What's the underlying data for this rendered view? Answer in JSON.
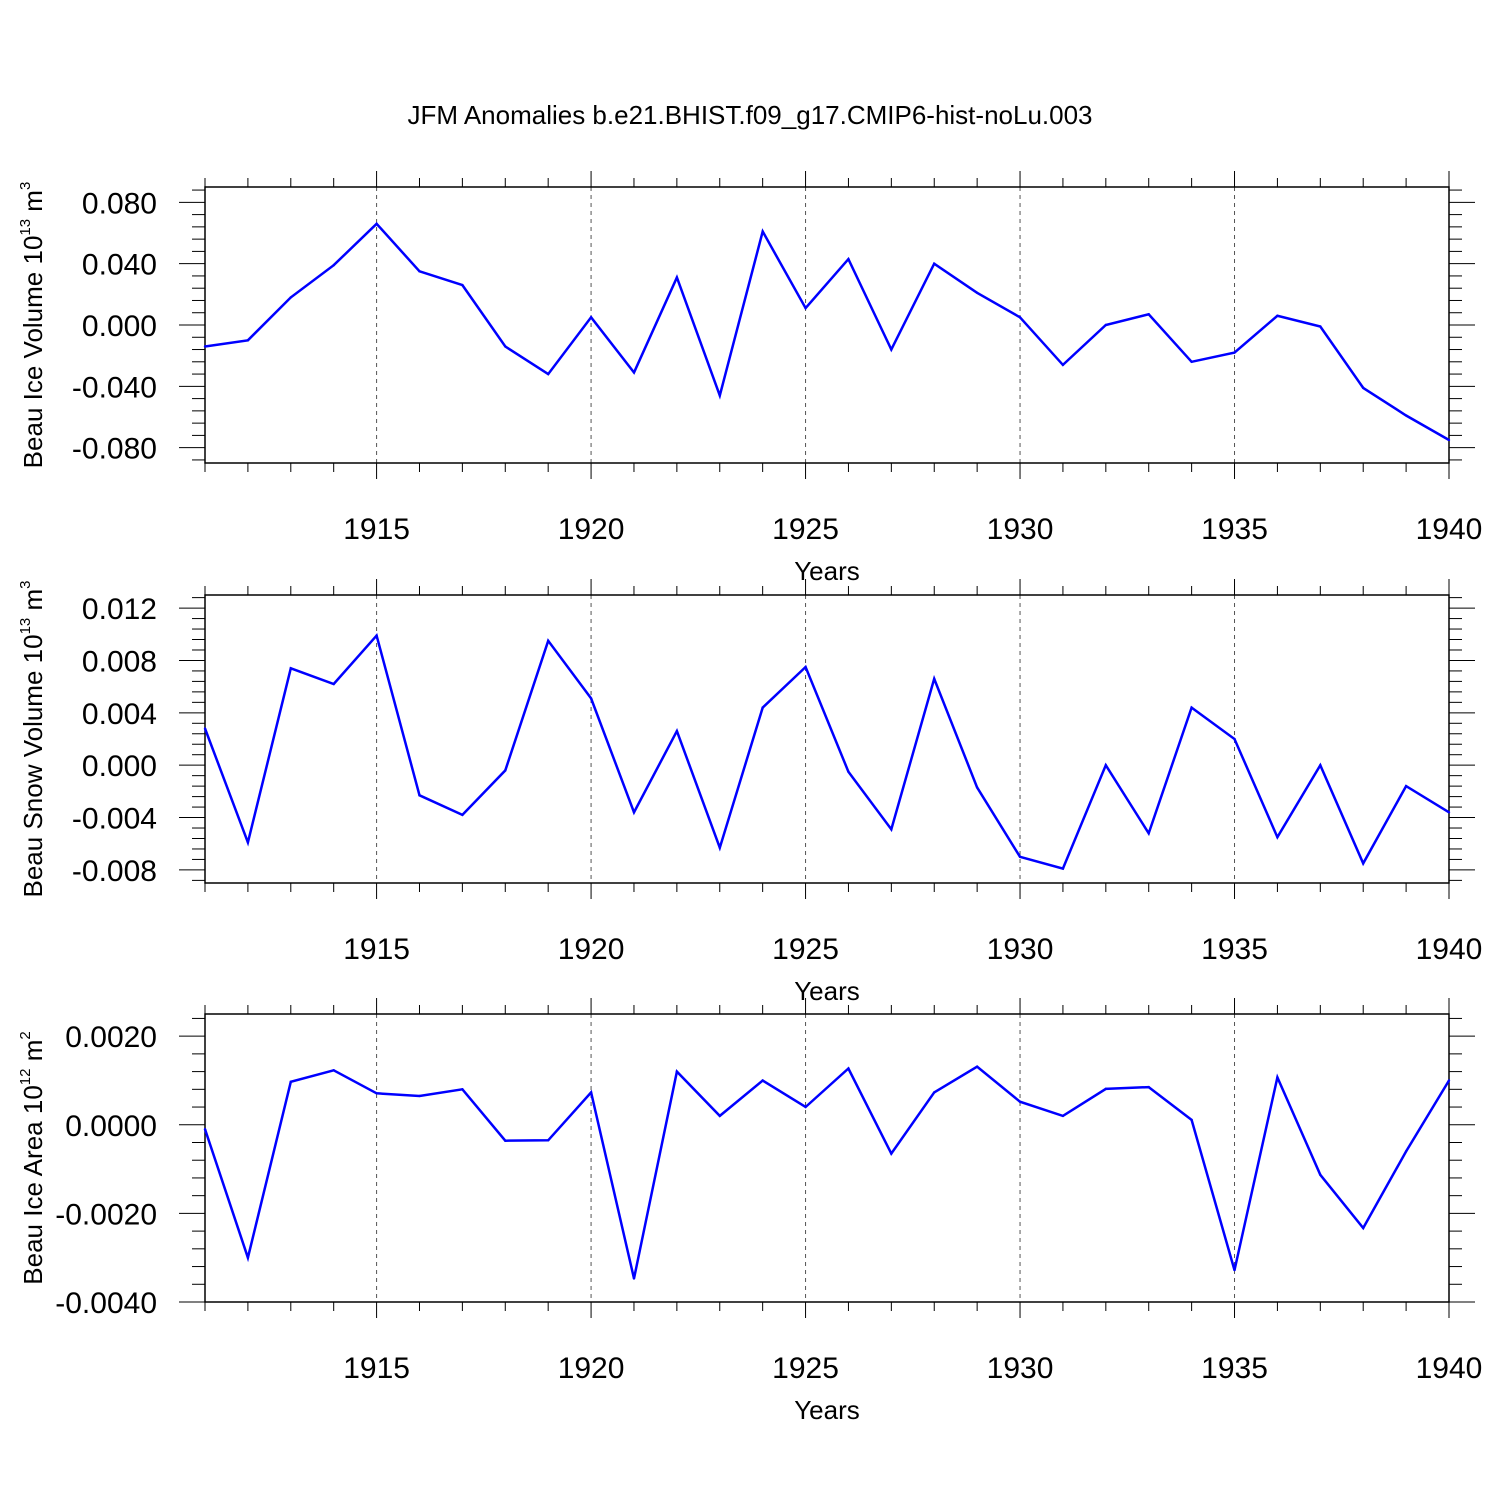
{
  "title": "JFM Anomalies b.e21.BHIST.f09_g17.CMIP6-hist-noLu.003",
  "line_color": "#0000ff",
  "chart_data": [
    {
      "type": "line",
      "ylabel": {
        "base": "Beau Ice Volume 10",
        "exp": "13",
        "unit": " m",
        "unit_exp": "3"
      },
      "xlabel": "Years",
      "xlim": [
        1911,
        1940
      ],
      "ylim": [
        -0.09,
        0.09
      ],
      "x_ticks": [
        1915,
        1920,
        1925,
        1930,
        1935,
        1940
      ],
      "x_tick_labels": [
        "1915",
        "1920",
        "1925",
        "1930",
        "1935",
        "1940"
      ],
      "y_ticks": [
        0.08,
        0.04,
        0.0,
        -0.04,
        -0.08
      ],
      "y_tick_labels": [
        "0.080",
        "0.040",
        "0.000",
        "-0.040",
        "-0.080"
      ],
      "grid": "vertical dashed at labeled years",
      "x": [
        1911,
        1912,
        1913,
        1914,
        1915,
        1916,
        1917,
        1918,
        1919,
        1920,
        1921,
        1922,
        1923,
        1924,
        1925,
        1926,
        1927,
        1928,
        1929,
        1930,
        1931,
        1932,
        1933,
        1934,
        1935,
        1936,
        1937,
        1938,
        1939,
        1940
      ],
      "values": [
        -0.014,
        -0.01,
        0.018,
        0.039,
        0.066,
        0.035,
        0.026,
        -0.014,
        -0.032,
        0.005,
        -0.031,
        0.031,
        -0.046,
        0.061,
        0.011,
        0.043,
        -0.016,
        0.04,
        0.021,
        0.005,
        -0.026,
        0.0,
        0.007,
        -0.024,
        -0.018,
        0.006,
        -0.001,
        -0.041,
        -0.059,
        -0.075
      ]
    },
    {
      "type": "line",
      "ylabel": {
        "base": "Beau Snow Volume 10",
        "exp": "13",
        "unit": " m",
        "unit_exp": "3"
      },
      "xlabel": "Years",
      "xlim": [
        1911,
        1940
      ],
      "ylim": [
        -0.009,
        0.013
      ],
      "x_ticks": [
        1915,
        1920,
        1925,
        1930,
        1935,
        1940
      ],
      "x_tick_labels": [
        "1915",
        "1920",
        "1925",
        "1930",
        "1935",
        "1940"
      ],
      "y_ticks": [
        0.012,
        0.008,
        0.004,
        0.0,
        -0.004,
        -0.008
      ],
      "y_tick_labels": [
        "0.012",
        "0.008",
        "0.004",
        "0.000",
        "-0.004",
        "-0.008"
      ],
      "grid": "vertical dashed at labeled years",
      "x": [
        1911,
        1912,
        1913,
        1914,
        1915,
        1916,
        1917,
        1918,
        1919,
        1920,
        1921,
        1922,
        1923,
        1924,
        1925,
        1926,
        1927,
        1928,
        1929,
        1930,
        1931,
        1932,
        1933,
        1934,
        1935,
        1936,
        1937,
        1938,
        1939,
        1940
      ],
      "values": [
        0.0028,
        -0.0059,
        0.0074,
        0.0062,
        0.0099,
        -0.0023,
        -0.0038,
        -0.0004,
        0.0095,
        0.0051,
        -0.0036,
        0.0026,
        -0.0063,
        0.0044,
        0.0075,
        -0.0005,
        -0.0049,
        0.0066,
        -0.0017,
        -0.007,
        -0.0079,
        0.0,
        -0.0052,
        0.0044,
        0.002,
        -0.0055,
        0.0,
        -0.0075,
        -0.0016,
        -0.0036
      ]
    },
    {
      "type": "line",
      "ylabel": {
        "base": "Beau Ice Area 10",
        "exp": "12",
        "unit": " m",
        "unit_exp": "2"
      },
      "xlabel": "Years",
      "xlim": [
        1911,
        1940
      ],
      "ylim": [
        -0.004,
        0.0025
      ],
      "x_ticks": [
        1915,
        1920,
        1925,
        1930,
        1935,
        1940
      ],
      "x_tick_labels": [
        "1915",
        "1920",
        "1925",
        "1930",
        "1935",
        "1940"
      ],
      "y_ticks": [
        0.002,
        0.0,
        -0.002,
        -0.004
      ],
      "y_tick_labels": [
        "0.0020",
        "0.0000",
        "-0.0020",
        "-0.0040"
      ],
      "grid": "vertical dashed at labeled years",
      "x": [
        1911,
        1912,
        1913,
        1914,
        1915,
        1916,
        1917,
        1918,
        1919,
        1920,
        1921,
        1922,
        1923,
        1924,
        1925,
        1926,
        1927,
        1928,
        1929,
        1930,
        1931,
        1932,
        1933,
        1934,
        1935,
        1936,
        1937,
        1938,
        1939,
        1940
      ],
      "values": [
        -0.0001,
        -0.003,
        0.00097,
        0.00123,
        0.00071,
        0.00065,
        0.0008,
        -0.00036,
        -0.00035,
        0.00073,
        -0.00347,
        0.0012,
        0.0002,
        0.001,
        0.0004,
        0.00127,
        -0.00065,
        0.00073,
        0.00131,
        0.00052,
        0.0002,
        0.00081,
        0.00085,
        0.00011,
        -0.00328,
        0.00107,
        -0.00113,
        -0.00233,
        -0.0006,
        0.001
      ]
    }
  ]
}
